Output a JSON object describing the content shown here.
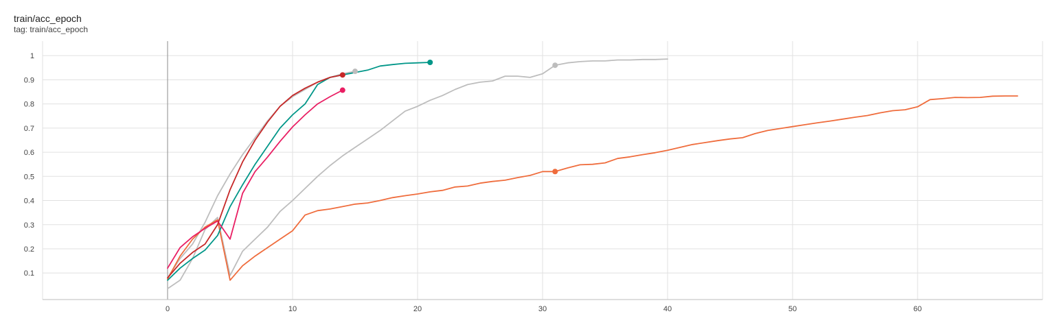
{
  "card": {
    "title": "train/acc_epoch",
    "tag": "tag: train/acc_epoch"
  },
  "chart_data": {
    "type": "line",
    "title": "train/acc_epoch",
    "xlabel": "",
    "ylabel": "",
    "xlim": [
      -10,
      70
    ],
    "ylim": [
      -0.01,
      1.06
    ],
    "x_ticks": [
      0,
      10,
      20,
      30,
      40,
      50,
      60
    ],
    "y_ticks": [
      0.1,
      0.2,
      0.3,
      0.4,
      0.5,
      0.6,
      0.7,
      0.8,
      0.9,
      1
    ],
    "x_tick_labels": [
      "0",
      "10",
      "20",
      "30",
      "40",
      "50",
      "60"
    ],
    "y_tick_labels": [
      "0.1",
      "0.2",
      "0.3",
      "0.4",
      "0.5",
      "0.6",
      "0.7",
      "0.8",
      "0.9",
      "1"
    ],
    "grid": true,
    "legend": "none",
    "series": [
      {
        "color": "#bdbdbd",
        "x": [
          0,
          1,
          2,
          3,
          4,
          5,
          6,
          7,
          8,
          9,
          10,
          11,
          12,
          13,
          14,
          15
        ],
        "y": [
          0.08,
          0.16,
          0.22,
          0.31,
          0.42,
          0.51,
          0.59,
          0.66,
          0.73,
          0.79,
          0.83,
          0.86,
          0.89,
          0.91,
          0.925,
          0.935
        ]
      },
      {
        "color": "#bdbdbd",
        "x": [
          0,
          1,
          2,
          3,
          4,
          5,
          6,
          7,
          8,
          9,
          10,
          11,
          12,
          13,
          14,
          15,
          16,
          17,
          18,
          19,
          20,
          21,
          22,
          23,
          24,
          25,
          26,
          27,
          28,
          29,
          30,
          31,
          32,
          33,
          34,
          35,
          36,
          37,
          38,
          39,
          40
        ],
        "y": [
          0.035,
          0.07,
          0.16,
          0.28,
          0.33,
          0.09,
          0.19,
          0.24,
          0.29,
          0.355,
          0.4,
          0.45,
          0.5,
          0.545,
          0.585,
          0.62,
          0.655,
          0.69,
          0.73,
          0.77,
          0.79,
          0.815,
          0.835,
          0.86,
          0.88,
          0.89,
          0.895,
          0.915,
          0.915,
          0.91,
          0.925,
          0.96,
          0.97,
          0.975,
          0.978,
          0.978,
          0.982,
          0.982,
          0.984,
          0.984,
          0.986
        ]
      },
      {
        "color": "#ef6c3c",
        "x": [
          0,
          1,
          2,
          3,
          4,
          5,
          6,
          7,
          8,
          9,
          10,
          11,
          12,
          13,
          14,
          15,
          16,
          17,
          18,
          19,
          20,
          21,
          22,
          23,
          24,
          25,
          26,
          27,
          28,
          29,
          30,
          31,
          32,
          33,
          34,
          35,
          36,
          37,
          38,
          39,
          40,
          41,
          42,
          43,
          44,
          45,
          46,
          47,
          48,
          49,
          50,
          51,
          52,
          53,
          54,
          55,
          56,
          57,
          58,
          59,
          60,
          61,
          62,
          63,
          64,
          65,
          66,
          67,
          68
        ],
        "y": [
          0.075,
          0.17,
          0.24,
          0.29,
          0.32,
          0.07,
          0.13,
          0.17,
          0.205,
          0.24,
          0.275,
          0.34,
          0.358,
          0.365,
          0.375,
          0.385,
          0.39,
          0.4,
          0.412,
          0.42,
          0.427,
          0.436,
          0.442,
          0.456,
          0.46,
          0.472,
          0.479,
          0.484,
          0.495,
          0.504,
          0.52,
          0.52,
          0.535,
          0.548,
          0.55,
          0.556,
          0.574,
          0.581,
          0.59,
          0.598,
          0.608,
          0.62,
          0.632,
          0.64,
          0.648,
          0.655,
          0.66,
          0.677,
          0.69,
          0.698,
          0.706,
          0.714,
          0.722,
          0.729,
          0.737,
          0.745,
          0.752,
          0.763,
          0.772,
          0.776,
          0.788,
          0.818,
          0.822,
          0.827,
          0.826,
          0.827,
          0.832,
          0.833,
          0.833
        ]
      },
      {
        "color": "#009688",
        "x": [
          0,
          1,
          2,
          3,
          4,
          5,
          6,
          7,
          8,
          9,
          10,
          11,
          12,
          13,
          14,
          15,
          16,
          17,
          18,
          19,
          20,
          21
        ],
        "y": [
          0.07,
          0.12,
          0.16,
          0.195,
          0.255,
          0.375,
          0.465,
          0.55,
          0.625,
          0.7,
          0.755,
          0.8,
          0.88,
          0.91,
          0.92,
          0.93,
          0.94,
          0.957,
          0.963,
          0.968,
          0.97,
          0.972
        ]
      },
      {
        "color": "#e91e63",
        "x": [
          0,
          1,
          2,
          3,
          4,
          5,
          6,
          7,
          8,
          9,
          10,
          11,
          12,
          13,
          14
        ],
        "y": [
          0.12,
          0.205,
          0.25,
          0.285,
          0.315,
          0.24,
          0.43,
          0.52,
          0.58,
          0.645,
          0.705,
          0.755,
          0.8,
          0.83,
          0.857
        ]
      },
      {
        "color": "#c62828",
        "x": [
          0,
          1,
          2,
          3,
          4,
          5,
          6,
          7,
          8,
          9,
          10,
          11,
          12,
          13,
          14
        ],
        "y": [
          0.08,
          0.14,
          0.185,
          0.22,
          0.3,
          0.445,
          0.56,
          0.65,
          0.725,
          0.79,
          0.835,
          0.865,
          0.89,
          0.91,
          0.92
        ]
      }
    ],
    "markers": [
      {
        "color": "#bdbdbd",
        "x": 15,
        "y": 0.935
      },
      {
        "color": "#bdbdbd",
        "x": 31,
        "y": 0.96
      },
      {
        "color": "#ef6c3c",
        "x": 31,
        "y": 0.52
      },
      {
        "color": "#009688",
        "x": 21,
        "y": 0.972
      },
      {
        "color": "#e91e63",
        "x": 14,
        "y": 0.857
      },
      {
        "color": "#c62828",
        "x": 14,
        "y": 0.92
      }
    ]
  }
}
